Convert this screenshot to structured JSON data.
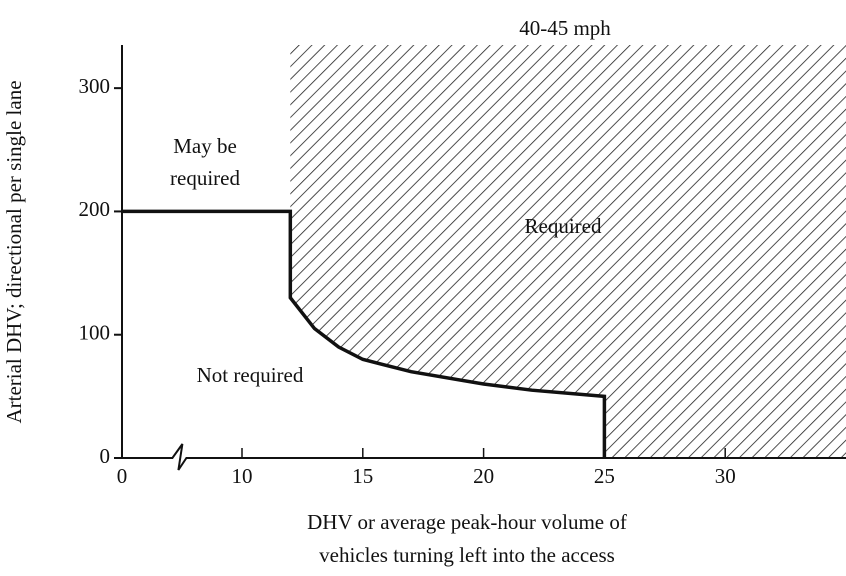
{
  "chart_data": {
    "type": "line",
    "title": "40-45 mph",
    "ylabel": "Arterial DHV; directional per single lane",
    "xlabel": [
      "DHV or average peak-hour volume of",
      "vehicles turning left into the access"
    ],
    "annotations": [
      "May be",
      "required",
      "Required",
      "Not required"
    ],
    "x": [
      0,
      12,
      12,
      13,
      14,
      15,
      17,
      20,
      22,
      25,
      25
    ],
    "values": [
      200,
      200,
      130,
      105,
      90,
      80,
      70,
      60,
      55,
      50,
      0
    ],
    "color": "#111111",
    "shade_right": true,
    "x_break": true,
    "xlim": [
      0,
      35
    ],
    "ylim": [
      0,
      335
    ],
    "xticks": [
      0,
      10,
      15,
      20,
      25,
      30
    ],
    "yticks": [
      0,
      100,
      200,
      300
    ]
  }
}
